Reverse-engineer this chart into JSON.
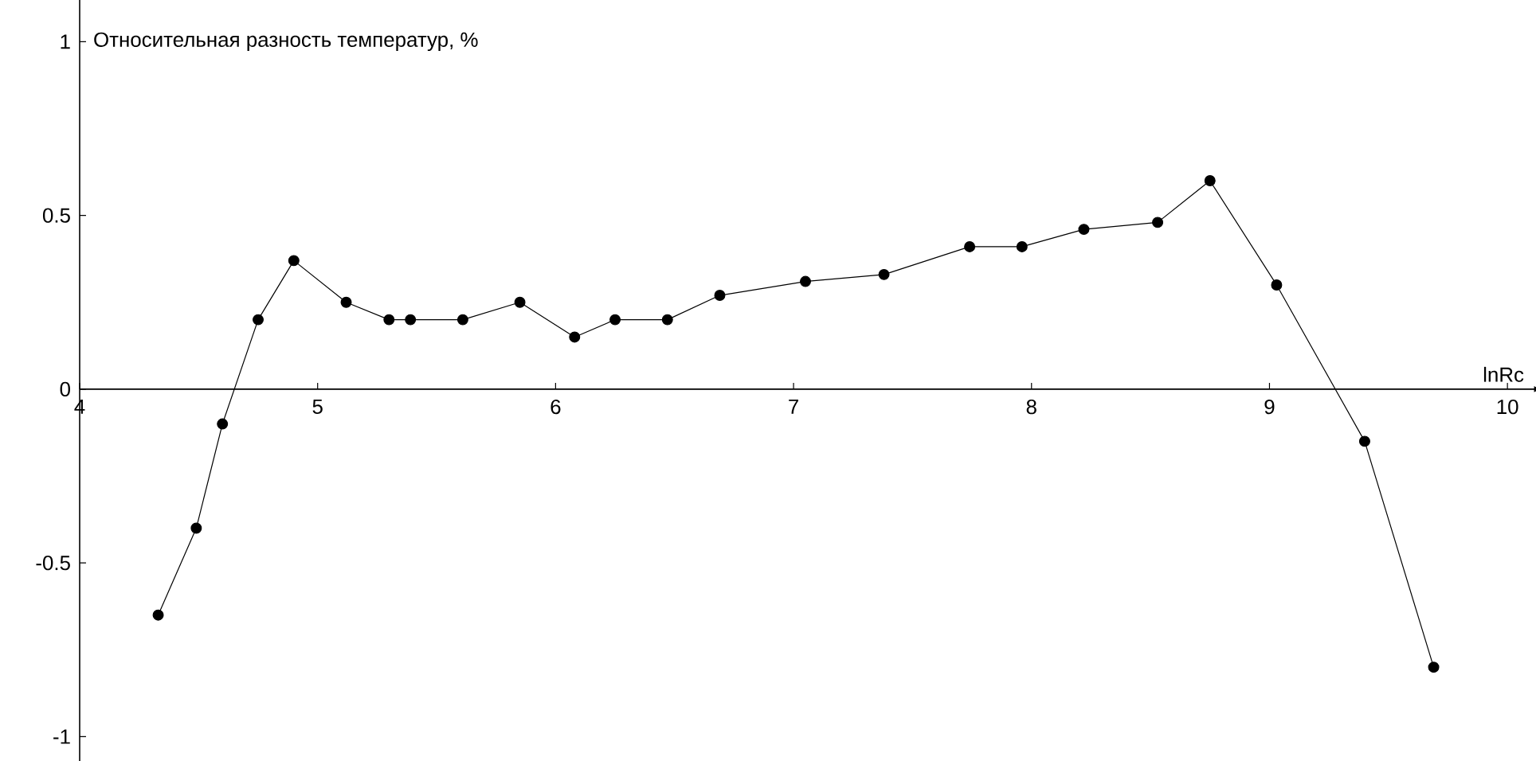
{
  "chart_data": {
    "type": "line",
    "ylabel": "Относительная разность температур, %",
    "xlabel": "lnRc",
    "x": [
      4.33,
      4.49,
      4.6,
      4.75,
      4.9,
      5.12,
      5.3,
      5.39,
      5.61,
      5.85,
      6.08,
      6.25,
      6.47,
      6.69,
      7.05,
      7.38,
      7.74,
      7.96,
      8.22,
      8.53,
      8.75,
      9.03,
      9.4,
      9.69
    ],
    "values": [
      -0.65,
      -0.4,
      -0.1,
      0.2,
      0.37,
      0.25,
      0.2,
      0.2,
      0.2,
      0.25,
      0.15,
      0.2,
      0.2,
      0.27,
      0.31,
      0.33,
      0.41,
      0.41,
      0.46,
      0.48,
      0.6,
      0.3,
      -0.15,
      -0.8
    ],
    "color": "#000000",
    "marker": "circle",
    "xlim": [
      4,
      10.1
    ],
    "ylim": [
      -1.07,
      1.12
    ],
    "xticks": [
      4,
      5,
      6,
      7,
      8,
      9,
      10
    ],
    "yticks": [
      -1,
      -0.5,
      0,
      0.5,
      1
    ]
  }
}
